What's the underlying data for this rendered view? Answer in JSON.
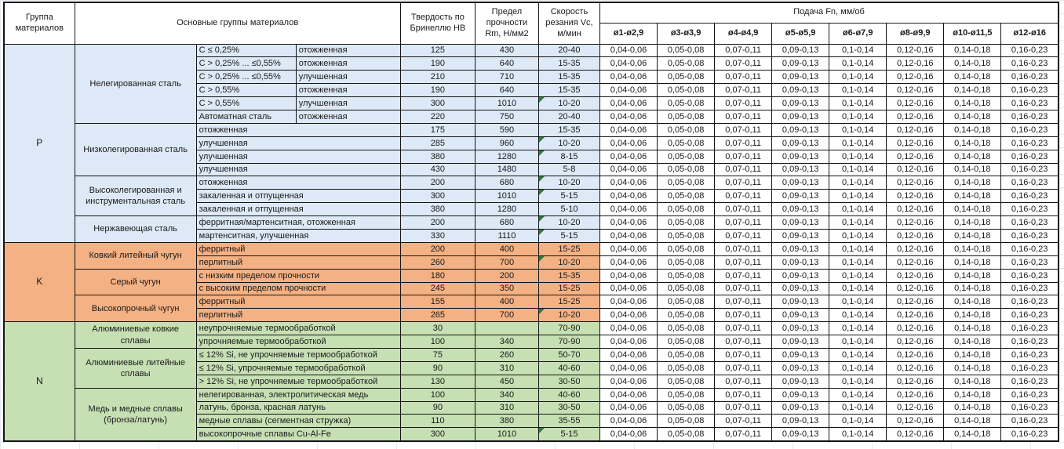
{
  "header": {
    "group_col": "Группа материалов",
    "materials_col": "Основные группы материалов",
    "hardness_col": "Твердость по Бринеллю HB",
    "strength_col": "Предел прочности Rm, Н/мм2",
    "speed_col": "Скорость резания Vc, м/мин",
    "feed_title": "Подача Fn, мм/об",
    "feed_cols": [
      "ø1-ø2,9",
      "ø3-ø3,9",
      "ø4-ø4,9",
      "ø5-ø5,9",
      "ø6-ø7,9",
      "ø8-ø9,9",
      "ø10-ø11,5",
      "ø12-ø16"
    ]
  },
  "feed_values": [
    "0,04-0,06",
    "0,05-0,08",
    "0,07-0,11",
    "0,09-0,13",
    "0,1-0,14",
    "0,12-0,16",
    "0,14-0,18",
    "0,16-0,23"
  ],
  "flag_color": "#2d7d3a",
  "groups": [
    {
      "letter": "P",
      "color": "#dde9f6",
      "families": [
        {
          "name": "Нелегированная сталь",
          "rows": [
            {
              "cells": [
                "C ≤ 0,25%",
                "отожженная"
              ],
              "hb": "125",
              "rm": "430",
              "vc": "20-40",
              "flag": false
            },
            {
              "cells": [
                "C > 0,25% ... ≤0,55%",
                "отожженная"
              ],
              "hb": "190",
              "rm": "640",
              "vc": "15-35",
              "flag": false
            },
            {
              "cells": [
                "C > 0,25% ... ≤0,55%",
                "улучшенная"
              ],
              "hb": "210",
              "rm": "710",
              "vc": "15-35",
              "flag": false
            },
            {
              "cells": [
                "C > 0,55%",
                "отожженная"
              ],
              "hb": "190",
              "rm": "640",
              "vc": "15-35",
              "flag": false
            },
            {
              "cells": [
                "C > 0,55%",
                "улучшенная"
              ],
              "hb": "300",
              "rm": "1010",
              "vc": "10-20",
              "flag": true
            },
            {
              "cells": [
                "Автоматная сталь",
                "отожженная"
              ],
              "hb": "220",
              "rm": "750",
              "vc": "20-40",
              "flag": false
            }
          ]
        },
        {
          "name": "Низколегированная сталь",
          "rows": [
            {
              "cells": [
                "отожженная"
              ],
              "hb": "175",
              "rm": "590",
              "vc": "15-35",
              "flag": false
            },
            {
              "cells": [
                "улучшенная"
              ],
              "hb": "285",
              "rm": "960",
              "vc": "10-20",
              "flag": true
            },
            {
              "cells": [
                "улучшенная"
              ],
              "hb": "380",
              "rm": "1280",
              "vc": "8-15",
              "flag": true
            },
            {
              "cells": [
                "улучшенная"
              ],
              "hb": "430",
              "rm": "1480",
              "vc": "5-8",
              "flag": false
            }
          ]
        },
        {
          "name": "Высоколегированная и инструментальная сталь",
          "rows": [
            {
              "cells": [
                "отожженная"
              ],
              "hb": "200",
              "rm": "680",
              "vc": "10-20",
              "flag": true
            },
            {
              "cells": [
                "закаленная и отпущенная"
              ],
              "hb": "300",
              "rm": "1010",
              "vc": "5-15",
              "flag": true
            },
            {
              "cells": [
                "закаленная и отпущенная"
              ],
              "hb": "380",
              "rm": "1280",
              "vc": "5-10",
              "flag": false
            }
          ]
        },
        {
          "name": "Нержавеющая сталь",
          "rows": [
            {
              "cells": [
                "ферритная/мартенситная, отожженная"
              ],
              "hb": "200",
              "rm": "680",
              "vc": "10-20",
              "flag": true
            },
            {
              "cells": [
                "мартенситная, улучшенная"
              ],
              "hb": "330",
              "rm": "1110",
              "vc": "5-15",
              "flag": true
            }
          ]
        }
      ]
    },
    {
      "letter": "K",
      "color": "#f4b183",
      "families": [
        {
          "name": "Ковкий литейный чугун",
          "rows": [
            {
              "cells": [
                "ферритный"
              ],
              "hb": "200",
              "rm": "400",
              "vc": "15-25",
              "flag": false
            },
            {
              "cells": [
                "перлитный"
              ],
              "hb": "260",
              "rm": "700",
              "vc": "10-20",
              "flag": true
            }
          ]
        },
        {
          "name": "Серый чугун",
          "rows": [
            {
              "cells": [
                "с низким пределом прочности"
              ],
              "hb": "180",
              "rm": "200",
              "vc": "15-35",
              "flag": false
            },
            {
              "cells": [
                "с высоким пределом прочности"
              ],
              "hb": "245",
              "rm": "350",
              "vc": "15-25",
              "flag": false
            }
          ]
        },
        {
          "name": "Высокопрочный чугун",
          "rows": [
            {
              "cells": [
                "ферритный"
              ],
              "hb": "155",
              "rm": "400",
              "vc": "15-25",
              "flag": false
            },
            {
              "cells": [
                "перлитный"
              ],
              "hb": "265",
              "rm": "700",
              "vc": "10-20",
              "flag": true
            }
          ]
        }
      ]
    },
    {
      "letter": "N",
      "color": "#c6e0b4",
      "families": [
        {
          "name": "Алюминиевые ковкие сплавы",
          "rows": [
            {
              "cells": [
                "неупрочняемые термообработкой"
              ],
              "hb": "30",
              "rm": "",
              "vc": "70-90",
              "flag": false
            },
            {
              "cells": [
                "упрочняемые термообработкой"
              ],
              "hb": "100",
              "rm": "340",
              "vc": "70-90",
              "flag": false
            }
          ]
        },
        {
          "name": "Алюминиевые литейные сплавы",
          "rows": [
            {
              "cells": [
                "≤ 12% Si, не упрочняемые термообработкой"
              ],
              "hb": "75",
              "rm": "260",
              "vc": "50-70",
              "flag": false
            },
            {
              "cells": [
                "≤ 12% Si, упрочняемые термообработкой"
              ],
              "hb": "90",
              "rm": "310",
              "vc": "40-60",
              "flag": false
            },
            {
              "cells": [
                "> 12% Si, не упрочняемые термообработкой"
              ],
              "hb": "130",
              "rm": "450",
              "vc": "30-50",
              "flag": false
            }
          ]
        },
        {
          "name": "Медь и медные сплавы (бронза/латунь)",
          "rows": [
            {
              "cells": [
                "нелегированная, электролитическая медь"
              ],
              "hb": "100",
              "rm": "340",
              "vc": "40-60",
              "flag": false
            },
            {
              "cells": [
                "латунь, бронза, красная латунь"
              ],
              "hb": "90",
              "rm": "310",
              "vc": "30-50",
              "flag": false
            },
            {
              "cells": [
                "медные сплавы (сегментная стружка)"
              ],
              "hb": "110",
              "rm": "380",
              "vc": "35-55",
              "flag": false
            },
            {
              "cells": [
                "высокопрочные сплавы Cu-Al-Fe"
              ],
              "hb": "300",
              "rm": "1010",
              "vc": "5-15",
              "flag": true
            }
          ]
        }
      ]
    }
  ]
}
